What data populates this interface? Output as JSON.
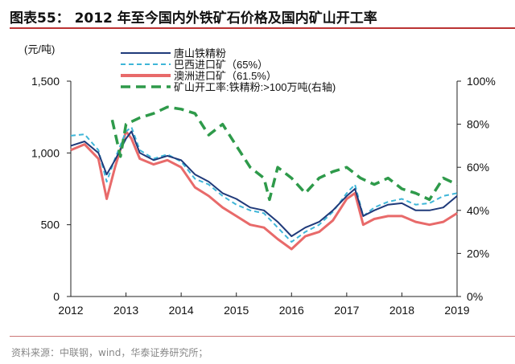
{
  "title": "图表55：  2012 年至今国内外铁矿石价格及国内矿山开工率",
  "source": "资料来源：中联钢，wind，华泰证券研究所；",
  "chart_data": {
    "type": "line",
    "title": "2012 年至今国内外铁矿石价格及国内矿山开工率",
    "ylabel": "(元/吨)",
    "ylim": [
      0,
      1500
    ],
    "y2lim": [
      0,
      100
    ],
    "xlim": [
      2012,
      2019
    ],
    "xticks": [
      "2012",
      "2013",
      "2014",
      "2015",
      "2016",
      "2017",
      "2018",
      "2019"
    ],
    "yticks": [
      "0",
      "500",
      "1,000",
      "1,500"
    ],
    "y2ticks": [
      "0%",
      "20%",
      "40%",
      "60%",
      "80%",
      "100%"
    ],
    "legend_position": "top",
    "series": [
      {
        "name": "唐山铁精粉",
        "axis": "left",
        "color": "#1f3a7a",
        "style": "solid",
        "x": [
          2012,
          2012.25,
          2012.5,
          2012.65,
          2012.8,
          2013,
          2013.1,
          2013.25,
          2013.5,
          2013.75,
          2014,
          2014.25,
          2014.5,
          2014.75,
          2015,
          2015.25,
          2015.5,
          2015.75,
          2016,
          2016.25,
          2016.5,
          2016.75,
          2017,
          2017.15,
          2017.3,
          2017.5,
          2017.75,
          2018,
          2018.25,
          2018.5,
          2018.75,
          2019
        ],
        "y": [
          1050,
          1080,
          1000,
          850,
          950,
          1100,
          1150,
          1000,
          950,
          980,
          950,
          850,
          800,
          720,
          680,
          620,
          600,
          520,
          420,
          480,
          520,
          600,
          700,
          750,
          560,
          600,
          640,
          650,
          600,
          600,
          620,
          700
        ]
      },
      {
        "name": "巴西进口矿（65%）",
        "axis": "left",
        "color": "#3fb6d8",
        "style": "dashed",
        "x": [
          2012,
          2012.25,
          2012.5,
          2012.65,
          2012.8,
          2013,
          2013.1,
          2013.25,
          2013.5,
          2013.75,
          2014,
          2014.25,
          2014.5,
          2014.75,
          2015,
          2015.25,
          2015.5,
          2015.75,
          2016,
          2016.25,
          2016.5,
          2016.75,
          2017,
          2017.15,
          2017.3,
          2017.5,
          2017.75,
          2018,
          2018.25,
          2018.5,
          2018.75,
          2019
        ],
        "y": [
          1120,
          1130,
          1020,
          800,
          960,
          1150,
          1180,
          1020,
          960,
          990,
          940,
          820,
          780,
          700,
          640,
          600,
          580,
          480,
          380,
          450,
          500,
          590,
          720,
          780,
          560,
          620,
          660,
          680,
          640,
          650,
          700,
          720
        ]
      },
      {
        "name": "澳洲进口矿（61.5%）",
        "axis": "left",
        "color": "#e86a6a",
        "style": "solid",
        "x": [
          2012,
          2012.25,
          2012.5,
          2012.65,
          2012.8,
          2013,
          2013.1,
          2013.25,
          2013.5,
          2013.75,
          2014,
          2014.25,
          2014.5,
          2014.75,
          2015,
          2015.25,
          2015.5,
          2015.75,
          2016,
          2016.25,
          2016.5,
          2016.75,
          2017,
          2017.15,
          2017.3,
          2017.5,
          2017.75,
          2018,
          2018.25,
          2018.5,
          2018.75,
          2019
        ],
        "y": [
          1020,
          1060,
          960,
          680,
          900,
          1150,
          1100,
          960,
          920,
          950,
          900,
          760,
          700,
          620,
          560,
          500,
          480,
          400,
          330,
          420,
          450,
          530,
          680,
          720,
          500,
          540,
          560,
          560,
          520,
          500,
          520,
          580
        ]
      },
      {
        "name": "矿山开工率:铁精粉:>100万吨(右轴)",
        "axis": "right",
        "color": "#2e9a4a",
        "style": "dashed",
        "x": [
          2012.75,
          2012.9,
          2013,
          2013.25,
          2013.5,
          2013.75,
          2014,
          2014.25,
          2014.5,
          2014.75,
          2015,
          2015.25,
          2015.5,
          2015.6,
          2015.75,
          2016,
          2016.25,
          2016.5,
          2016.75,
          2017,
          2017.25,
          2017.5,
          2017.75,
          2018,
          2018.25,
          2018.5,
          2018.75,
          2019
        ],
        "y": [
          82,
          65,
          80,
          83,
          85,
          88,
          87,
          85,
          75,
          80,
          70,
          60,
          55,
          45,
          60,
          55,
          48,
          55,
          58,
          60,
          55,
          52,
          55,
          50,
          48,
          45,
          55,
          52
        ]
      }
    ]
  }
}
